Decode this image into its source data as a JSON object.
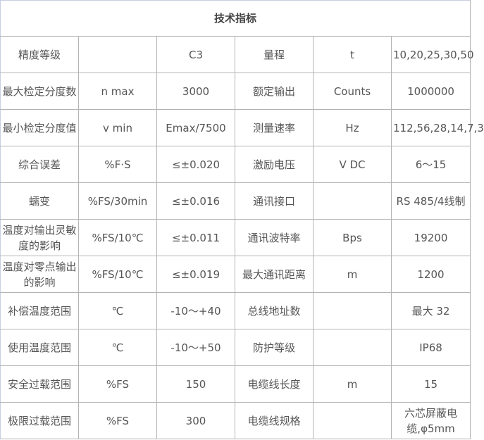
{
  "title": "技术指标",
  "rows": [
    [
      "精度等级",
      "",
      "C3",
      "量程",
      "t",
      "10,20,25,30,50"
    ],
    [
      "最大检定分度数",
      "n max",
      "3000",
      "额定输出",
      "Counts",
      "1000000"
    ],
    [
      "最小检定分度值",
      "v min",
      "Emax/7500",
      "测量速率",
      "Hz",
      "112,56,28,14,7,3"
    ],
    [
      "综合误差",
      "%F·S",
      "≤±0.020",
      "激励电压",
      "V DC",
      "6～15"
    ],
    [
      "蠕变",
      "%FS/30min",
      "≤±0.016",
      "通讯接口",
      "",
      "RS 485/4线制"
    ],
    [
      "温度对输出灵敏度的影响",
      "%FS/10℃",
      "≤±0.011",
      "通讯波特率",
      "Bps",
      "19200"
    ],
    [
      "温度对零点输出的影响",
      "%FS/10℃",
      "≤±0.019",
      "最大通讯距离",
      "m",
      "1200"
    ],
    [
      "补偿温度范围",
      "℃",
      "-10～+40",
      "总线地址数",
      "",
      "最大 32"
    ],
    [
      "使用温度范围",
      "℃",
      "-10～+50",
      "防护等级",
      "",
      "IP68"
    ],
    [
      "安全过载范围",
      "%FS",
      "150",
      "电缆线长度",
      "m",
      "15"
    ],
    [
      "极限过载范围",
      "%FS",
      "300",
      "电缆线规格",
      "",
      "六芯屏蔽电缆,φ5mm"
    ]
  ]
}
